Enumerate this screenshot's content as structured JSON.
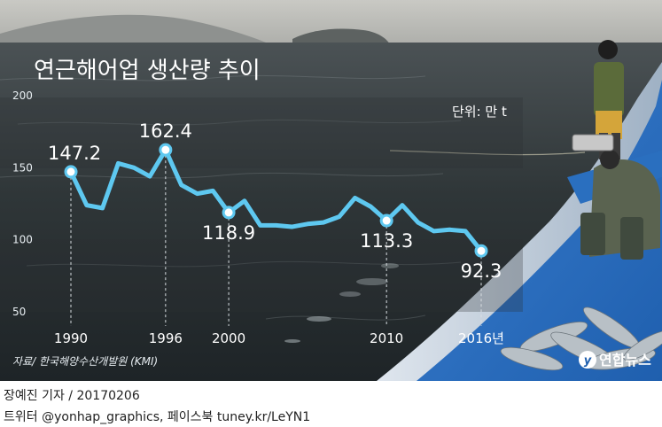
{
  "chart_data": {
    "type": "line",
    "title": "연근해어업 생산량 추이",
    "unit": "단위: 만 t",
    "x": [
      1990,
      1991,
      1992,
      1993,
      1994,
      1995,
      1996,
      1997,
      1998,
      1999,
      2000,
      2001,
      2002,
      2003,
      2004,
      2005,
      2006,
      2007,
      2008,
      2009,
      2010,
      2011,
      2012,
      2013,
      2014,
      2015,
      2016
    ],
    "values": [
      147.2,
      124,
      122,
      153,
      150,
      144,
      162.4,
      138,
      132,
      134,
      118.9,
      127,
      110,
      110,
      109,
      111,
      112,
      116,
      129,
      123,
      113.3,
      124,
      112,
      106,
      107,
      106,
      92.3
    ],
    "x_tick_labels": [
      {
        "x": 1990,
        "label": "1990"
      },
      {
        "x": 1996,
        "label": "1996"
      },
      {
        "x": 2000,
        "label": "2000"
      },
      {
        "x": 2010,
        "label": "2010"
      },
      {
        "x": 2016,
        "label": "2016년"
      }
    ],
    "y_ticks": [
      200,
      150,
      100,
      50
    ],
    "ylim": [
      50,
      200
    ],
    "data_labels": [
      {
        "x": 1990,
        "label": "147.2"
      },
      {
        "x": 1996,
        "label": "162.4"
      },
      {
        "x": 2000,
        "label": "118.9"
      },
      {
        "x": 2010,
        "label": "113.3"
      },
      {
        "x": 2016,
        "label": "92.3"
      }
    ],
    "line_color": "#5ec8f0"
  },
  "source": "자료/ 한국해양수산개발원 (KMI)",
  "logo_text": "연합뉴스",
  "footer": {
    "byline": "장예진 기자 / 20170206",
    "social": "트위터 @yonhap_graphics, 페이스북 tuney.kr/LeYN1"
  }
}
